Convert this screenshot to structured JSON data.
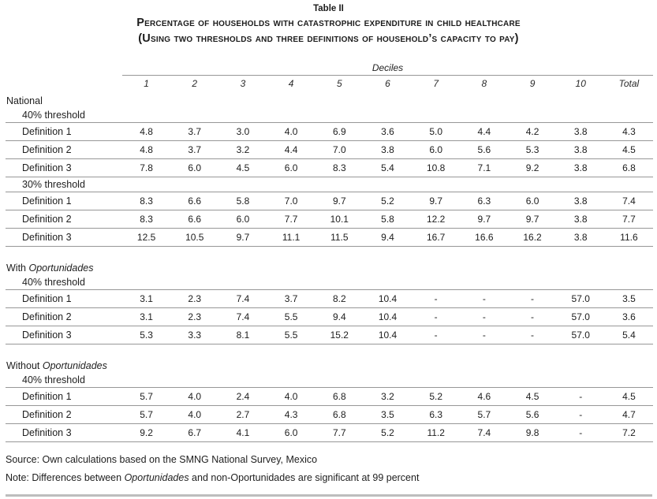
{
  "header": {
    "title": "Table II",
    "caption_line1": "Percentage of households with catastrophic expenditure in child healthcare",
    "caption_line2": "(Using two thresholds and three definitions of household’s capacity to pay)"
  },
  "table": {
    "col_group_label": "Deciles",
    "columns": [
      "1",
      "2",
      "3",
      "4",
      "5",
      "6",
      "7",
      "8",
      "9",
      "10",
      "Total"
    ],
    "sections": [
      {
        "label": "National",
        "label_italic": "",
        "subsections": [
          {
            "label": "40% threshold",
            "rows": [
              {
                "label": "Definition 1",
                "values": [
                  "4.8",
                  "3.7",
                  "3.0",
                  "4.0",
                  "6.9",
                  "3.6",
                  "5.0",
                  "4.4",
                  "4.2",
                  "3.8",
                  "4.3"
                ]
              },
              {
                "label": "Definition 2",
                "values": [
                  "4.8",
                  "3.7",
                  "3.2",
                  "4.4",
                  "7.0",
                  "3.8",
                  "6.0",
                  "5.6",
                  "5.3",
                  "3.8",
                  "4.5"
                ]
              },
              {
                "label": "Definition 3",
                "values": [
                  "7.8",
                  "6.0",
                  "4.5",
                  "6.0",
                  "8.3",
                  "5.4",
                  "10.8",
                  "7.1",
                  "9.2",
                  "3.8",
                  "6.8"
                ]
              }
            ]
          },
          {
            "label": "30% threshold",
            "rows": [
              {
                "label": "Definition 1",
                "values": [
                  "8.3",
                  "6.6",
                  "5.8",
                  "7.0",
                  "9.7",
                  "5.2",
                  "9.7",
                  "6.3",
                  "6.0",
                  "3.8",
                  "7.4"
                ]
              },
              {
                "label": "Definition 2",
                "values": [
                  "8.3",
                  "6.6",
                  "6.0",
                  "7.7",
                  "10.1",
                  "5.8",
                  "12.2",
                  "9.7",
                  "9.7",
                  "3.8",
                  "7.7"
                ]
              },
              {
                "label": "Definition 3",
                "values": [
                  "12.5",
                  "10.5",
                  "9.7",
                  "11.1",
                  "11.5",
                  "9.4",
                  "16.7",
                  "16.6",
                  "16.2",
                  "3.8",
                  "11.6"
                ]
              }
            ]
          }
        ]
      },
      {
        "label": "With ",
        "label_italic": "Oportunidades",
        "subsections": [
          {
            "label": "40% threshold",
            "rows": [
              {
                "label": "Definition 1",
                "values": [
                  "3.1",
                  "2.3",
                  "7.4",
                  "3.7",
                  "8.2",
                  "10.4",
                  "-",
                  "-",
                  "-",
                  "57.0",
                  "3.5"
                ]
              },
              {
                "label": "Definition 2",
                "values": [
                  "3.1",
                  "2.3",
                  "7.4",
                  "5.5",
                  "9.4",
                  "10.4",
                  "-",
                  "-",
                  "-",
                  "57.0",
                  "3.6"
                ]
              },
              {
                "label": "Definition 3",
                "values": [
                  "5.3",
                  "3.3",
                  "8.1",
                  "5.5",
                  "15.2",
                  "10.4",
                  "-",
                  "-",
                  "-",
                  "57.0",
                  "5.4"
                ]
              }
            ]
          }
        ]
      },
      {
        "label": "Without ",
        "label_italic": "Oportunidades",
        "subsections": [
          {
            "label": "40% threshold",
            "rows": [
              {
                "label": "Definition 1",
                "values": [
                  "5.7",
                  "4.0",
                  "2.4",
                  "4.0",
                  "6.8",
                  "3.2",
                  "5.2",
                  "4.6",
                  "4.5",
                  "-",
                  "4.5"
                ]
              },
              {
                "label": "Definition 2",
                "values": [
                  "5.7",
                  "4.0",
                  "2.7",
                  "4.3",
                  "6.8",
                  "3.5",
                  "6.3",
                  "5.7",
                  "5.6",
                  "-",
                  "4.7"
                ]
              },
              {
                "label": "Definition 3",
                "values": [
                  "9.2",
                  "6.7",
                  "4.1",
                  "6.0",
                  "7.7",
                  "5.2",
                  "11.2",
                  "7.4",
                  "9.8",
                  "-",
                  "7.2"
                ]
              }
            ]
          }
        ]
      }
    ]
  },
  "notes": {
    "source": "Source: Own calculations based on the SMNG National Survey, Mexico",
    "note_prefix": "Note: Differences between ",
    "note_italic": "Oportunidades",
    "note_suffix": " and non-Oportunidades are significant at 99 percent"
  },
  "colors": {
    "rule": "#979797",
    "bottom_bar": "#bdbdbd",
    "text": "#1e1e1e",
    "background": "#ffffff"
  }
}
